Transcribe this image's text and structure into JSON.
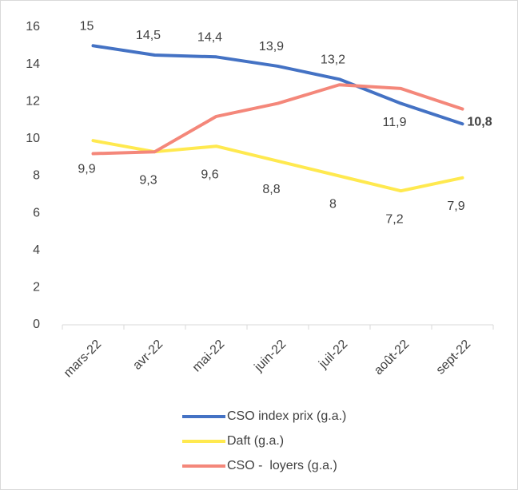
{
  "chart_data": {
    "type": "line",
    "categories": [
      "mars-22",
      "avr-22",
      "mai-22",
      "juin-22",
      "juil-22",
      "août-22",
      "sept-22"
    ],
    "series": [
      {
        "name": "CSO index prix (g.a.)",
        "color": "#4472c4",
        "values": [
          15,
          14.5,
          14.4,
          13.9,
          13.2,
          11.9,
          10.8
        ],
        "value_labels": [
          "15",
          "14,5",
          "14,4",
          "13,9",
          "13,2",
          "11,9",
          "10,8"
        ]
      },
      {
        "name": "Daft (g.a.)",
        "color": "#ffe94f",
        "values": [
          9.9,
          9.3,
          9.6,
          8.8,
          8,
          7.2,
          7.9
        ],
        "value_labels": [
          "9,9",
          "9,3",
          "9,6",
          "8,8",
          "8",
          "7,2",
          "7,9"
        ]
      },
      {
        "name": "CSO -  loyers (g.a.)",
        "color": "#f4877a",
        "values": [
          9.2,
          9.3,
          11.2,
          11.9,
          12.9,
          12.7,
          11.6
        ]
      }
    ],
    "ylim": [
      0,
      16
    ],
    "yticks": [
      0,
      2,
      4,
      6,
      8,
      10,
      12,
      14,
      16
    ],
    "grid": false,
    "legend": "bottom"
  }
}
